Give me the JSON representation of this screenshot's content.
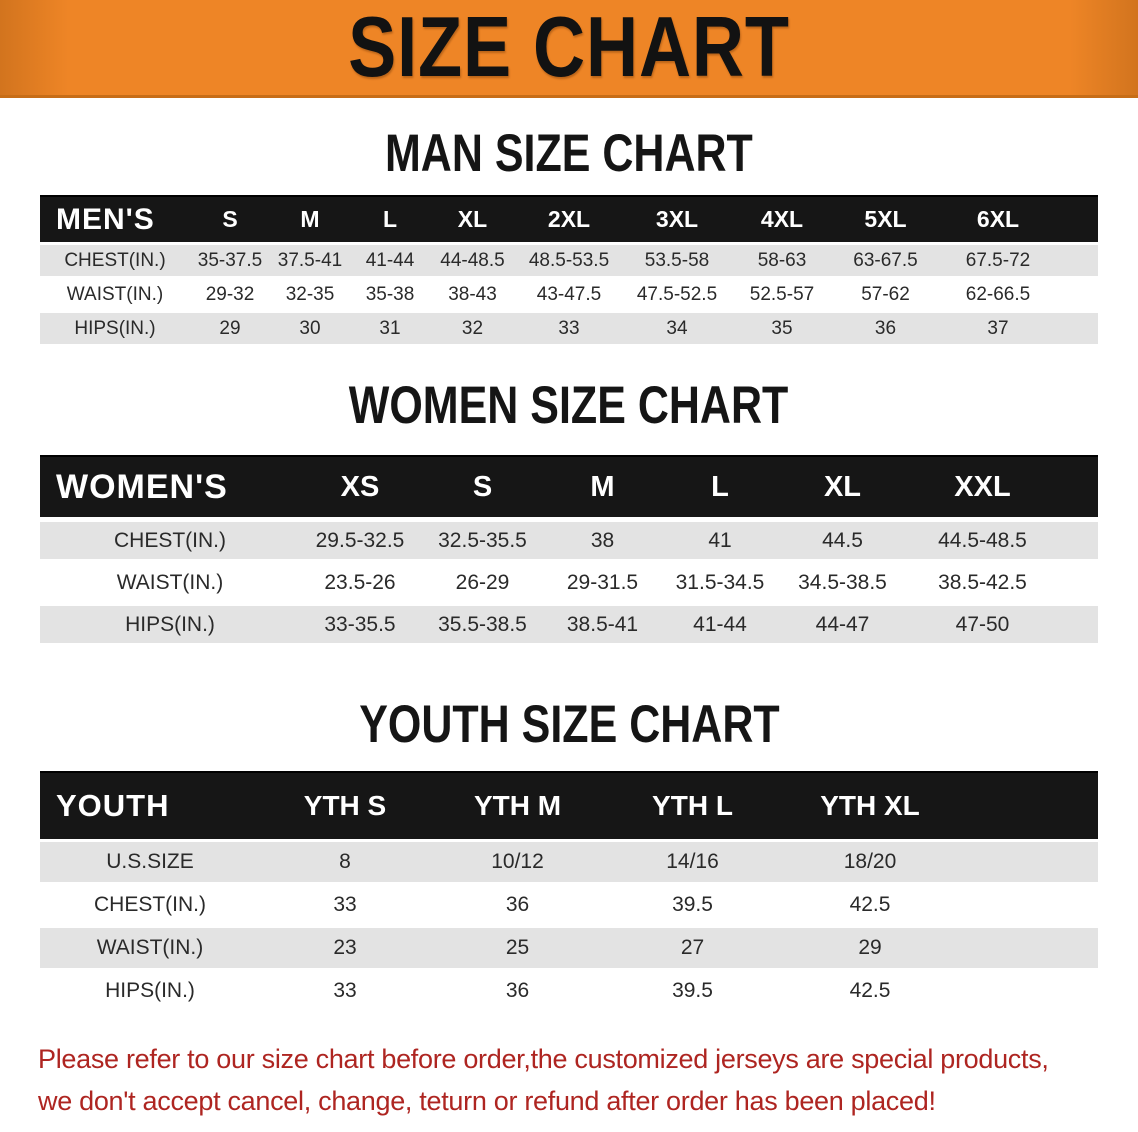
{
  "banner": {
    "title": "SIZE CHART",
    "bg_color": "#ee8526",
    "text_color": "#121212"
  },
  "sections": [
    {
      "heading": "MAN SIZE CHART",
      "table": {
        "label": "MEN'S",
        "columns": [
          "S",
          "M",
          "L",
          "XL",
          "2XL",
          "3XL",
          "4XL",
          "5XL",
          "6XL"
        ],
        "rows": [
          {
            "label": "CHEST(IN.)",
            "values": [
              "35-37.5",
              "37.5-41",
              "41-44",
              "44-48.5",
              "48.5-53.5",
              "53.5-58",
              "58-63",
              "63-67.5",
              "67.5-72"
            ]
          },
          {
            "label": "WAIST(IN.)",
            "values": [
              "29-32",
              "32-35",
              "35-38",
              "38-43",
              "43-47.5",
              "47.5-52.5",
              "52.5-57",
              "57-62",
              "62-66.5"
            ]
          },
          {
            "label": "HIPS(IN.)",
            "values": [
              "29",
              "30",
              "31",
              "32",
              "33",
              "34",
              "35",
              "36",
              "37"
            ]
          }
        ]
      }
    },
    {
      "heading": "WOMEN SIZE CHART",
      "table": {
        "label": "WOMEN'S",
        "columns": [
          "XS",
          "S",
          "M",
          "L",
          "XL",
          "XXL"
        ],
        "rows": [
          {
            "label": "CHEST(IN.)",
            "values": [
              "29.5-32.5",
              "32.5-35.5",
              "38",
              "41",
              "44.5",
              "44.5-48.5"
            ]
          },
          {
            "label": "WAIST(IN.)",
            "values": [
              "23.5-26",
              "26-29",
              "29-31.5",
              "31.5-34.5",
              "34.5-38.5",
              "38.5-42.5"
            ]
          },
          {
            "label": "HIPS(IN.)",
            "values": [
              "33-35.5",
              "35.5-38.5",
              "38.5-41",
              "41-44",
              "44-47",
              "47-50"
            ]
          }
        ]
      }
    },
    {
      "heading": "YOUTH SIZE CHART",
      "table": {
        "label": "YOUTH",
        "columns": [
          "YTH S",
          "YTH M",
          "YTH L",
          "YTH XL"
        ],
        "rows": [
          {
            "label": "U.S.SIZE",
            "values": [
              "8",
              "10/12",
              "14/16",
              "18/20"
            ]
          },
          {
            "label": "CHEST(IN.)",
            "values": [
              "33",
              "36",
              "39.5",
              "42.5"
            ]
          },
          {
            "label": "WAIST(IN.)",
            "values": [
              "23",
              "25",
              "27",
              "29"
            ]
          },
          {
            "label": "HIPS(IN.)",
            "values": [
              "33",
              "36",
              "39.5",
              "42.5"
            ]
          }
        ]
      }
    }
  ],
  "disclaimer": {
    "line1": "Please refer to our size chart before order,the customized jerseys are special products,",
    "line2": "we don't accept cancel, change, teturn or refund after order has been placed!",
    "color": "#ae2521"
  }
}
